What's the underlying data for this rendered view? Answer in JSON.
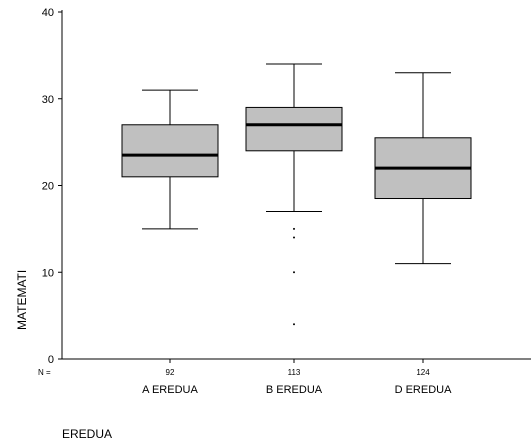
{
  "chart_data": {
    "type": "boxplot",
    "title": "",
    "xlabel": "EREDUA",
    "ylabel": "MATEMATI",
    "ylim": [
      0,
      40
    ],
    "yticks": [
      0,
      10,
      20,
      30,
      40
    ],
    "n_prefix": "N =",
    "categories": [
      "A EREDUA",
      "B EREDUA",
      "D EREDUA"
    ],
    "n": [
      "92",
      "113",
      "124"
    ],
    "boxes": [
      {
        "whisker_low": 15,
        "q1": 21,
        "median": 23.5,
        "q3": 27,
        "whisker_high": 31,
        "outliers": []
      },
      {
        "whisker_low": 17,
        "q1": 24,
        "median": 27,
        "q3": 29,
        "whisker_high": 34,
        "outliers": [
          15,
          14,
          10,
          4
        ]
      },
      {
        "whisker_low": 11,
        "q1": 18.5,
        "median": 22,
        "q3": 25.5,
        "whisker_high": 33,
        "outliers": []
      }
    ]
  }
}
